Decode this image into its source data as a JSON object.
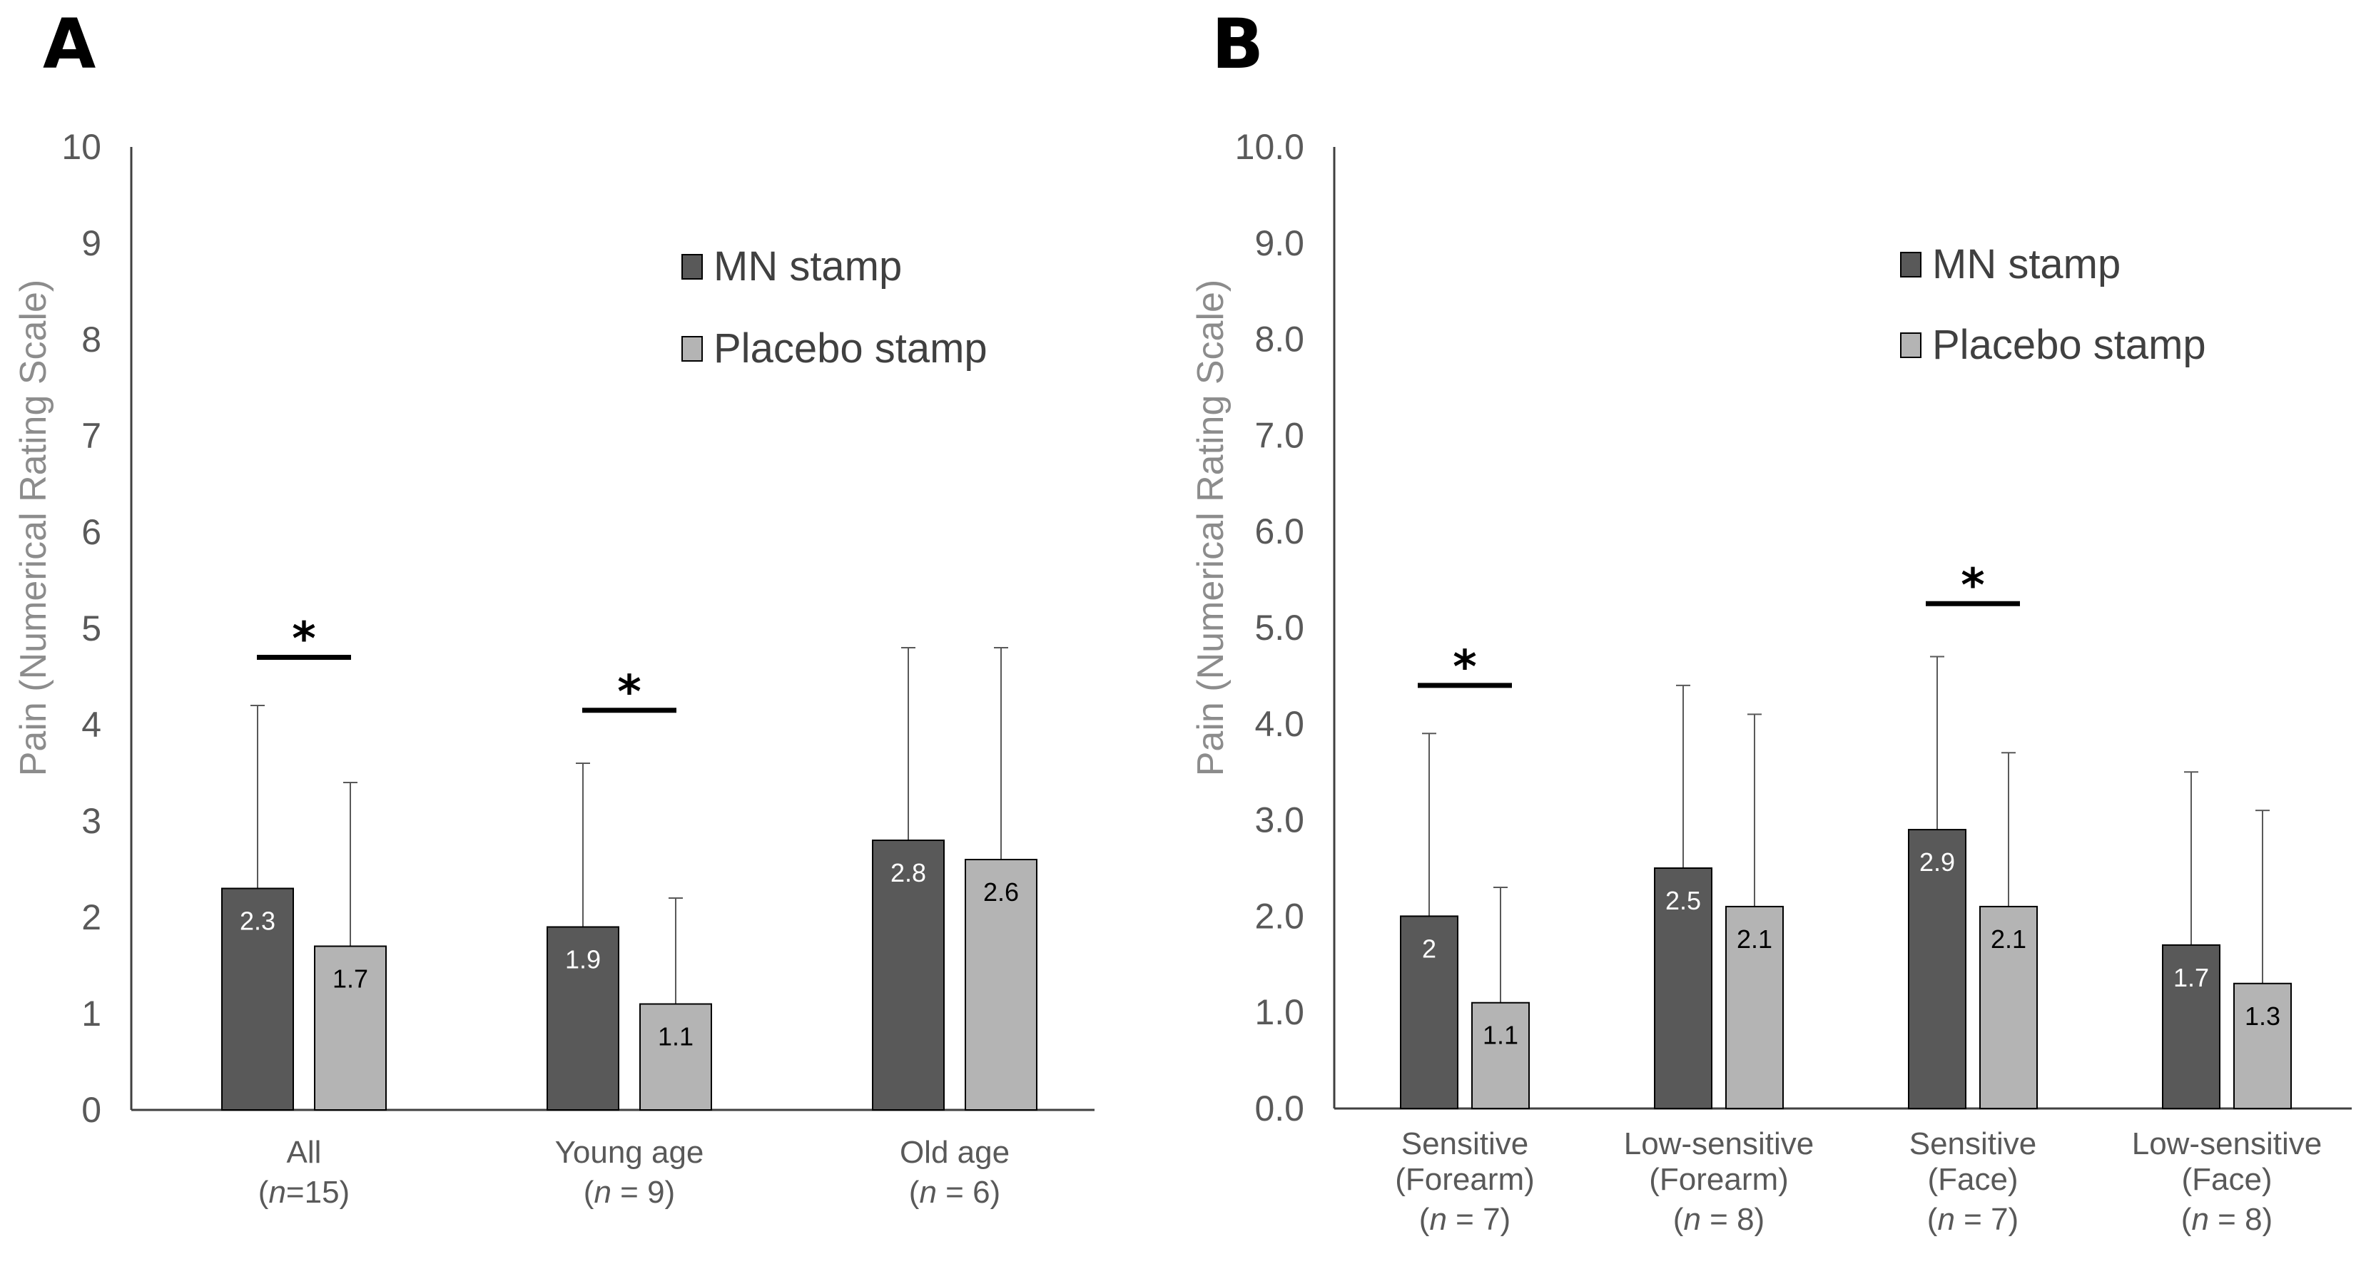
{
  "panels": [
    {
      "panel_label": "A",
      "colors": {
        "mn": "#595959",
        "placebo": "#b4b4b4",
        "axis": "#404040"
      },
      "legend": [
        "MN stamp",
        "Placebo stamp"
      ],
      "legend_position": "top-right",
      "chart_data": {
        "type": "bar",
        "ylabel": "Pain (Numerical Rating Scale)",
        "ylim": [
          0,
          10
        ],
        "yticks": [
          0,
          1,
          2,
          3,
          4,
          5,
          6,
          7,
          8,
          9,
          10
        ],
        "ytick_labels": [
          "0",
          "1",
          "2",
          "3",
          "4",
          "5",
          "6",
          "7",
          "8",
          "9",
          "10"
        ],
        "categories": [
          {
            "label": [
              "All"
            ],
            "n_value": "=15"
          },
          {
            "label": [
              "Young age"
            ],
            "n_value": " = 9"
          },
          {
            "label": [
              "Old age"
            ],
            "n_value": " = 6"
          }
        ],
        "n_prefix": "(",
        "n_symbol": "n",
        "n_suffix": ")",
        "series": [
          {
            "name": "MN stamp",
            "values": [
              2.3,
              1.9,
              2.8
            ],
            "labels": [
              "2.3",
              "1.9",
              "2.8"
            ],
            "error_upper": [
              4.2,
              3.6,
              4.8
            ]
          },
          {
            "name": "Placebo stamp",
            "values": [
              1.7,
              1.1,
              2.6
            ],
            "labels": [
              "1.7",
              "1.1",
              "2.6"
            ],
            "error_upper": [
              3.4,
              2.2,
              4.8
            ]
          }
        ],
        "significance": [
          {
            "category_index": 0,
            "y": 4.7,
            "label": "*"
          },
          {
            "category_index": 1,
            "y": 4.15,
            "label": "*"
          }
        ]
      }
    },
    {
      "panel_label": "B",
      "colors": {
        "mn": "#595959",
        "placebo": "#b4b4b4",
        "axis": "#404040"
      },
      "legend": [
        "MN stamp",
        "Placebo stamp"
      ],
      "legend_position": "top-right",
      "chart_data": {
        "type": "bar",
        "ylabel": "Pain (Numerical Rating Scale)",
        "ylim": [
          0,
          10
        ],
        "yticks": [
          0,
          1,
          2,
          3,
          4,
          5,
          6,
          7,
          8,
          9,
          10
        ],
        "ytick_labels": [
          "0.0",
          "1.0",
          "2.0",
          "3.0",
          "4.0",
          "5.0",
          "6.0",
          "7.0",
          "8.0",
          "9.0",
          "10.0"
        ],
        "categories": [
          {
            "label": [
              "Sensitive",
              "(Forearm)"
            ],
            "n_value": " = 7"
          },
          {
            "label": [
              "Low-sensitive",
              "(Forearm)"
            ],
            "n_value": " = 8"
          },
          {
            "label": [
              "Sensitive",
              "(Face)"
            ],
            "n_value": " = 7"
          },
          {
            "label": [
              "Low-sensitive",
              "(Face)"
            ],
            "n_value": " = 8"
          }
        ],
        "n_prefix": "(",
        "n_symbol": "n",
        "n_suffix": ")",
        "series": [
          {
            "name": "MN stamp",
            "values": [
              2.0,
              2.5,
              2.9,
              1.7
            ],
            "labels": [
              "2",
              "2.5",
              "2.9",
              "1.7"
            ],
            "error_upper": [
              3.9,
              4.4,
              4.7,
              3.5
            ]
          },
          {
            "name": "Placebo stamp",
            "values": [
              1.1,
              2.1,
              2.1,
              1.3
            ],
            "labels": [
              "1.1",
              "2.1",
              "2.1",
              "1.3"
            ],
            "error_upper": [
              2.3,
              4.1,
              3.7,
              3.1
            ]
          }
        ],
        "significance": [
          {
            "category_index": 0,
            "y": 4.4,
            "label": "*"
          },
          {
            "category_index": 2,
            "y": 5.25,
            "label": "*"
          }
        ]
      }
    }
  ]
}
